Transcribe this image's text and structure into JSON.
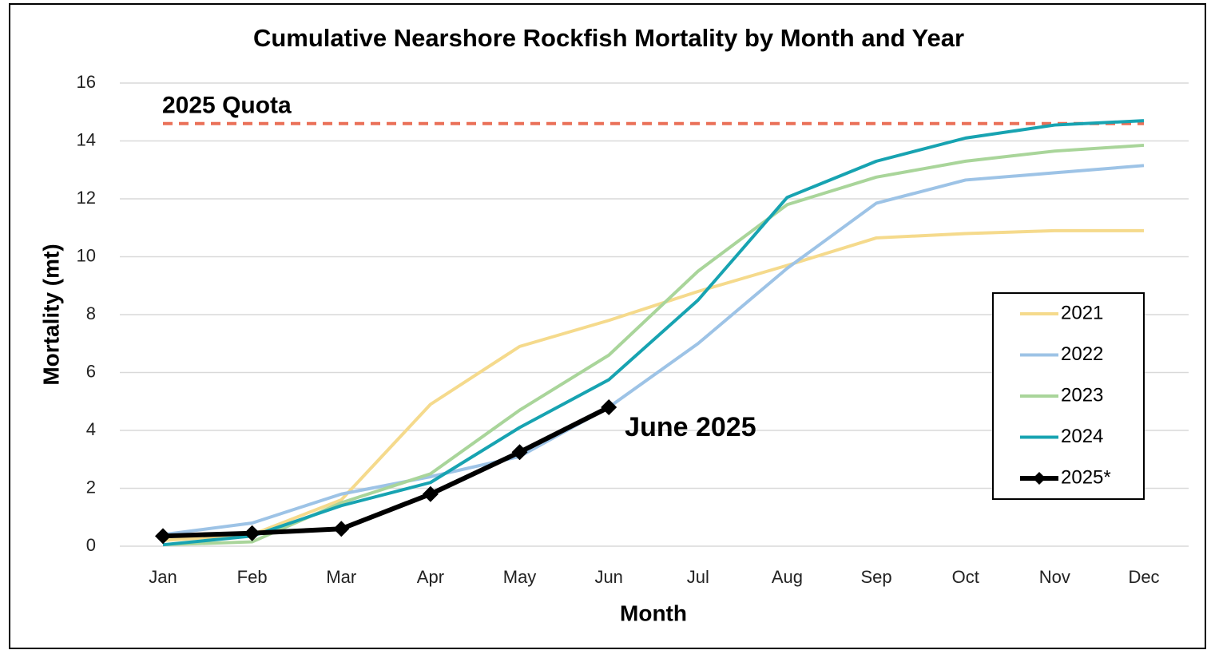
{
  "chart_data": {
    "type": "line",
    "title": "Cumulative Nearshore Rockfish Mortality by Month and Year",
    "x_label": "Month",
    "y_label": "Mortality (mt)",
    "categories": [
      "Jan",
      "Feb",
      "Mar",
      "Apr",
      "May",
      "Jun",
      "Jul",
      "Aug",
      "Sep",
      "Oct",
      "Nov",
      "Dec"
    ],
    "series": [
      {
        "name": "2021",
        "color": "#f5da8c",
        "values": [
          0.2,
          0.4,
          1.6,
          4.9,
          6.9,
          7.8,
          8.8,
          9.7,
          10.65,
          10.8,
          10.9,
          10.9
        ]
      },
      {
        "name": "2022",
        "color": "#9dc3e6",
        "values": [
          0.4,
          0.8,
          1.8,
          2.4,
          3.1,
          4.8,
          7.0,
          9.6,
          11.85,
          12.65,
          12.9,
          13.15
        ]
      },
      {
        "name": "2023",
        "color": "#a9d59a",
        "values": [
          0.05,
          0.15,
          1.5,
          2.5,
          4.7,
          6.6,
          9.5,
          11.8,
          12.75,
          13.3,
          13.65,
          13.85
        ]
      },
      {
        "name": "2024",
        "color": "#17a3b1",
        "values": [
          0.05,
          0.35,
          1.4,
          2.2,
          4.1,
          5.75,
          8.5,
          12.05,
          13.3,
          14.1,
          14.55,
          14.7
        ]
      },
      {
        "name": "2025*",
        "color": "#000000",
        "marker": "diamond",
        "values": [
          0.35,
          0.45,
          0.6,
          1.8,
          3.25,
          4.8,
          null,
          null,
          null,
          null,
          null,
          null
        ]
      }
    ],
    "reference_line": {
      "label": "2025 Quota",
      "value": 14.6,
      "color": "#ea7058",
      "dashed": true
    },
    "annotation": {
      "text": "June 2025"
    },
    "ylim": [
      0,
      16
    ],
    "yticks": [
      0,
      2,
      4,
      6,
      8,
      10,
      12,
      14,
      16
    ],
    "grid": true,
    "legend": "right"
  }
}
